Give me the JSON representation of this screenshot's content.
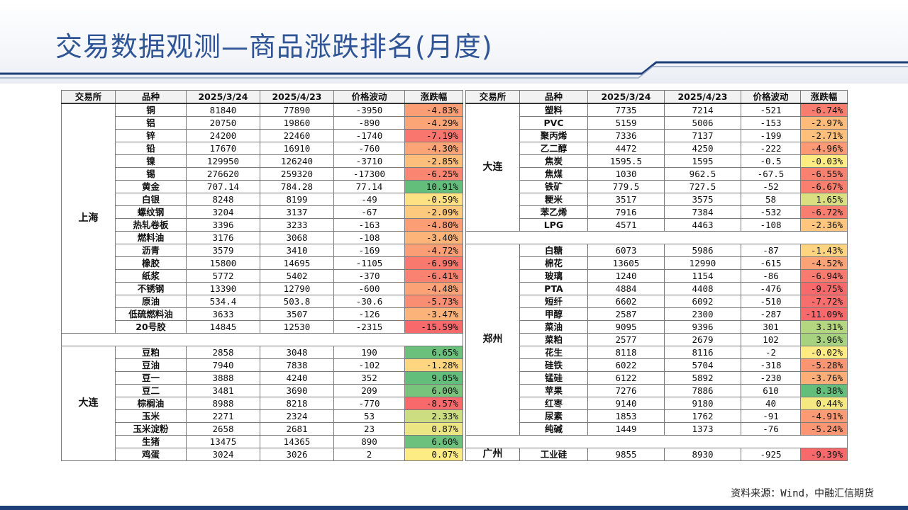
{
  "title": "交易数据观测—商品涨跌排名(月度)",
  "source": "资料来源：Wind，中融汇信期货",
  "headers": [
    "交易所",
    "品种",
    "2025/3/24",
    "2025/4/23",
    "价格波动",
    "涨跌幅"
  ],
  "colors": {
    "title": "#2f5597",
    "strong_down": "#f8696b",
    "mild": "#ffeb84",
    "strong_up": "#63be7b"
  },
  "left_table": {
    "groups": [
      {
        "exchange": "上海",
        "rows": [
          {
            "name": "铜",
            "p1": "81840",
            "p2": "77890",
            "diff": "-3950",
            "pct": "-4.83%",
            "v": -4.83
          },
          {
            "name": "铝",
            "p1": "20750",
            "p2": "19860",
            "diff": "-890",
            "pct": "-4.29%",
            "v": -4.29
          },
          {
            "name": "锌",
            "p1": "24200",
            "p2": "22460",
            "diff": "-1740",
            "pct": "-7.19%",
            "v": -7.19
          },
          {
            "name": "铅",
            "p1": "17670",
            "p2": "16910",
            "diff": "-760",
            "pct": "-4.30%",
            "v": -4.3
          },
          {
            "name": "镍",
            "p1": "129950",
            "p2": "126240",
            "diff": "-3710",
            "pct": "-2.85%",
            "v": -2.85
          },
          {
            "name": "锡",
            "p1": "276620",
            "p2": "259320",
            "diff": "-17300",
            "pct": "-6.25%",
            "v": -6.25
          },
          {
            "name": "黄金",
            "p1": "707.14",
            "p2": "784.28",
            "diff": "77.14",
            "pct": "10.91%",
            "v": 10.91
          },
          {
            "name": "白银",
            "p1": "8248",
            "p2": "8199",
            "diff": "-49",
            "pct": "-0.59%",
            "v": -0.59
          },
          {
            "name": "螺纹钢",
            "p1": "3204",
            "p2": "3137",
            "diff": "-67",
            "pct": "-2.09%",
            "v": -2.09
          },
          {
            "name": "热轧卷板",
            "p1": "3396",
            "p2": "3233",
            "diff": "-163",
            "pct": "-4.80%",
            "v": -4.8
          },
          {
            "name": "燃料油",
            "p1": "3176",
            "p2": "3068",
            "diff": "-108",
            "pct": "-3.40%",
            "v": -3.4
          },
          {
            "name": "沥青",
            "p1": "3579",
            "p2": "3410",
            "diff": "-169",
            "pct": "-4.72%",
            "v": -4.72
          },
          {
            "name": "橡胶",
            "p1": "15800",
            "p2": "14695",
            "diff": "-1105",
            "pct": "-6.99%",
            "v": -6.99
          },
          {
            "name": "纸浆",
            "p1": "5772",
            "p2": "5402",
            "diff": "-370",
            "pct": "-6.41%",
            "v": -6.41
          },
          {
            "name": "不锈钢",
            "p1": "13390",
            "p2": "12790",
            "diff": "-600",
            "pct": "-4.48%",
            "v": -4.48
          },
          {
            "name": "原油",
            "p1": "534.4",
            "p2": "503.8",
            "diff": "-30.6",
            "pct": "-5.73%",
            "v": -5.73
          },
          {
            "name": "低硫燃料油",
            "p1": "3633",
            "p2": "3507",
            "diff": "-126",
            "pct": "-3.47%",
            "v": -3.47
          },
          {
            "name": "20号胶",
            "p1": "14845",
            "p2": "12530",
            "diff": "-2315",
            "pct": "-15.59%",
            "v": -15.59
          }
        ]
      },
      {
        "exchange": "大连",
        "rows": [
          {
            "name": "豆粕",
            "p1": "2858",
            "p2": "3048",
            "diff": "190",
            "pct": "6.65%",
            "v": 6.65
          },
          {
            "name": "豆油",
            "p1": "7940",
            "p2": "7838",
            "diff": "-102",
            "pct": "-1.28%",
            "v": -1.28
          },
          {
            "name": "豆一",
            "p1": "3888",
            "p2": "4240",
            "diff": "352",
            "pct": "9.05%",
            "v": 9.05
          },
          {
            "name": "豆二",
            "p1": "3481",
            "p2": "3690",
            "diff": "209",
            "pct": "6.00%",
            "v": 6.0
          },
          {
            "name": "棕榈油",
            "p1": "8988",
            "p2": "8218",
            "diff": "-770",
            "pct": "-8.57%",
            "v": -8.57
          },
          {
            "name": "玉米",
            "p1": "2271",
            "p2": "2324",
            "diff": "53",
            "pct": "2.33%",
            "v": 2.33
          },
          {
            "name": "玉米淀粉",
            "p1": "2658",
            "p2": "2681",
            "diff": "23",
            "pct": "0.87%",
            "v": 0.87
          },
          {
            "name": "生猪",
            "p1": "13475",
            "p2": "14365",
            "diff": "890",
            "pct": "6.60%",
            "v": 6.6
          },
          {
            "name": "鸡蛋",
            "p1": "3024",
            "p2": "3026",
            "diff": "2",
            "pct": "0.07%",
            "v": 0.07
          }
        ]
      }
    ]
  },
  "right_table": {
    "groups": [
      {
        "exchange": "大连",
        "rows": [
          {
            "name": "塑料",
            "p1": "7735",
            "p2": "7214",
            "diff": "-521",
            "pct": "-6.74%",
            "v": -6.74
          },
          {
            "name": "PVC",
            "p1": "5159",
            "p2": "5006",
            "diff": "-153",
            "pct": "-2.97%",
            "v": -2.97
          },
          {
            "name": "聚丙烯",
            "p1": "7336",
            "p2": "7137",
            "diff": "-199",
            "pct": "-2.71%",
            "v": -2.71
          },
          {
            "name": "乙二醇",
            "p1": "4472",
            "p2": "4250",
            "diff": "-222",
            "pct": "-4.96%",
            "v": -4.96
          },
          {
            "name": "焦炭",
            "p1": "1595.5",
            "p2": "1595",
            "diff": "-0.5",
            "pct": "-0.03%",
            "v": -0.03
          },
          {
            "name": "焦煤",
            "p1": "1030",
            "p2": "962.5",
            "diff": "-67.5",
            "pct": "-6.55%",
            "v": -6.55
          },
          {
            "name": "铁矿",
            "p1": "779.5",
            "p2": "727.5",
            "diff": "-52",
            "pct": "-6.67%",
            "v": -6.67
          },
          {
            "name": "粳米",
            "p1": "3517",
            "p2": "3575",
            "diff": "58",
            "pct": "1.65%",
            "v": 1.65
          },
          {
            "name": "苯乙烯",
            "p1": "7916",
            "p2": "7384",
            "diff": "-532",
            "pct": "-6.72%",
            "v": -6.72
          },
          {
            "name": "LPG",
            "p1": "4571",
            "p2": "4463",
            "diff": "-108",
            "pct": "-2.36%",
            "v": -2.36
          }
        ]
      },
      {
        "exchange": "郑州",
        "rows": [
          {
            "name": "白糖",
            "p1": "6073",
            "p2": "5986",
            "diff": "-87",
            "pct": "-1.43%",
            "v": -1.43
          },
          {
            "name": "棉花",
            "p1": "13605",
            "p2": "12990",
            "diff": "-615",
            "pct": "-4.52%",
            "v": -4.52
          },
          {
            "name": "玻璃",
            "p1": "1240",
            "p2": "1154",
            "diff": "-86",
            "pct": "-6.94%",
            "v": -6.94
          },
          {
            "name": "PTA",
            "p1": "4884",
            "p2": "4408",
            "diff": "-476",
            "pct": "-9.75%",
            "v": -9.75
          },
          {
            "name": "短纤",
            "p1": "6602",
            "p2": "6092",
            "diff": "-510",
            "pct": "-7.72%",
            "v": -7.72
          },
          {
            "name": "甲醇",
            "p1": "2587",
            "p2": "2300",
            "diff": "-287",
            "pct": "-11.09%",
            "v": -11.09
          },
          {
            "name": "菜油",
            "p1": "9095",
            "p2": "9396",
            "diff": "301",
            "pct": "3.31%",
            "v": 3.31
          },
          {
            "name": "菜粕",
            "p1": "2577",
            "p2": "2679",
            "diff": "102",
            "pct": "3.96%",
            "v": 3.96
          },
          {
            "name": "花生",
            "p1": "8118",
            "p2": "8116",
            "diff": "-2",
            "pct": "-0.02%",
            "v": -0.02
          },
          {
            "name": "硅铁",
            "p1": "6022",
            "p2": "5704",
            "diff": "-318",
            "pct": "-5.28%",
            "v": -5.28
          },
          {
            "name": "锰硅",
            "p1": "6122",
            "p2": "5892",
            "diff": "-230",
            "pct": "-3.76%",
            "v": -3.76
          },
          {
            "name": "苹果",
            "p1": "7276",
            "p2": "7886",
            "diff": "610",
            "pct": "8.38%",
            "v": 8.38
          },
          {
            "name": "红枣",
            "p1": "9140",
            "p2": "9180",
            "diff": "40",
            "pct": "0.44%",
            "v": 0.44
          },
          {
            "name": "尿素",
            "p1": "1853",
            "p2": "1762",
            "diff": "-91",
            "pct": "-4.91%",
            "v": -4.91
          },
          {
            "name": "纯碱",
            "p1": "1449",
            "p2": "1373",
            "diff": "-76",
            "pct": "-5.24%",
            "v": -5.24
          }
        ]
      },
      {
        "exchange": "广州",
        "rows": [
          {
            "name": "工业硅",
            "p1": "9855",
            "p2": "8930",
            "diff": "-925",
            "pct": "-9.39%",
            "v": -9.39
          }
        ]
      }
    ]
  }
}
